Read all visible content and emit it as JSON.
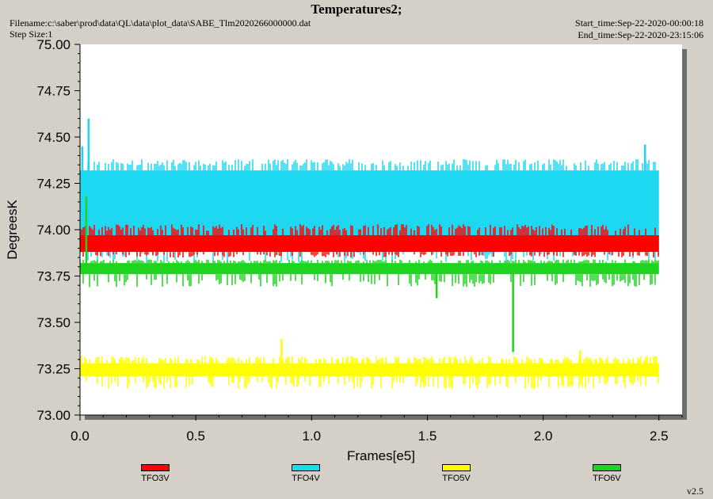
{
  "title": "Temperatures2;",
  "filename": "Filename:c:\\saber\\prod\\data\\QL\\data\\plot_data\\SABE_Tlm2020266000000.dat",
  "step_size": "Step Size:1",
  "start_time": "Start_time:Sep-22-2020-00:00:18",
  "end_time": "End_time:Sep-22-2020-23:15:06",
  "version": "v2.5",
  "chart_data": {
    "type": "line",
    "xlabel": "Frames[e5]",
    "ylabel": "DegreesK",
    "xlim": [
      0,
      2.6
    ],
    "ylim": [
      73.0,
      75.0
    ],
    "x_ticks": [
      "0.0",
      "0.5",
      "1.0",
      "1.5",
      "2.0",
      "2.5"
    ],
    "y_ticks": [
      "73.00",
      "73.25",
      "73.50",
      "73.75",
      "74.00",
      "74.25",
      "74.50",
      "74.75",
      "75.00"
    ],
    "x_end": 2.5,
    "grid": false,
    "legend_position": "bottom",
    "series": [
      {
        "name": "TFO4V",
        "color": "#1ed7f0",
        "base_range": [
          73.94,
          74.32
        ],
        "outer_range": [
          73.82,
          74.38
        ],
        "spikes": [
          [
            0.037,
            74.6
          ],
          [
            0.01,
            74.45
          ],
          [
            2.44,
            74.46
          ]
        ]
      },
      {
        "name": "TFO3V",
        "color": "#ff0000",
        "base_range": [
          73.88,
          73.97
        ],
        "outer_range": [
          73.85,
          74.03
        ],
        "spikes": []
      },
      {
        "name": "TFO6V",
        "color": "#1ed41e",
        "base_range": [
          73.76,
          73.82
        ],
        "outer_range": [
          73.69,
          73.84
        ],
        "spikes": [
          [
            0.027,
            74.18
          ],
          [
            1.54,
            73.63
          ],
          [
            1.87,
            73.34
          ]
        ]
      },
      {
        "name": "TFO5V",
        "color": "#ffff00",
        "base_range": [
          73.21,
          73.28
        ],
        "outer_range": [
          73.14,
          73.32
        ],
        "spikes": [
          [
            0.87,
            73.41
          ],
          [
            2.16,
            73.35
          ]
        ]
      }
    ]
  }
}
